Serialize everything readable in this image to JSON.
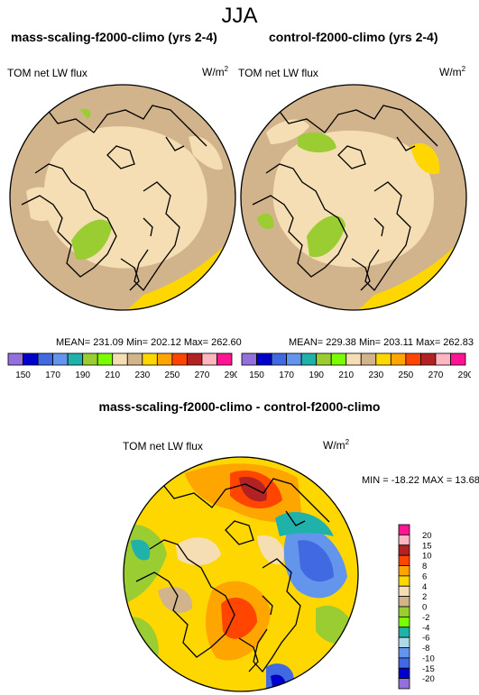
{
  "figure": {
    "title": "JJA",
    "left_panel": {
      "title": "mass-scaling-f2000-climo (yrs 2-4)",
      "variable": "TOM net LW flux",
      "units": "W/m",
      "units_sup": "2",
      "stats": "MEAN= 231.09  Min= 202.12  Max= 262.60"
    },
    "right_panel": {
      "title": "control-f2000-climo (yrs 2-4)",
      "variable": "TOM net LW flux",
      "units": "W/m",
      "units_sup": "2",
      "stats": "MEAN= 229.38  Min= 203.11  Max= 262.83"
    },
    "diff_panel": {
      "title": "mass-scaling-f2000-climo - control-f2000-climo",
      "variable": "TOM net LW flux",
      "units": "W/m",
      "units_sup": "2",
      "minmax": "MIN = -18.22  MAX =  13.68"
    },
    "colorbar_top": {
      "labels": [
        "150",
        "170",
        "190",
        "210",
        "230",
        "250",
        "270",
        "290"
      ],
      "colors": [
        "#9370db",
        "#0000cd",
        "#4169e1",
        "#6495ed",
        "#20b2aa",
        "#9acd32",
        "#7cfc00",
        "#f5deb3",
        "#d2b48c",
        "#ffd700",
        "#ffa500",
        "#ff4500",
        "#b22222",
        "#ffb6c1",
        "#ff1493"
      ]
    },
    "colorbar_diff": {
      "labels": [
        "20",
        "15",
        "10",
        "8",
        "6",
        "4",
        "2",
        "0",
        "-2",
        "-4",
        "-6",
        "-8",
        "-10",
        "-15",
        "-20"
      ],
      "colors": [
        "#ff1493",
        "#ffb6c1",
        "#b22222",
        "#ff4500",
        "#ffa500",
        "#ffd700",
        "#f5deb3",
        "#d2b48c",
        "#9acd32",
        "#7cfc00",
        "#20b2aa",
        "#add8e6",
        "#6495ed",
        "#4169e1",
        "#0000cd",
        "#9370db"
      ]
    }
  }
}
